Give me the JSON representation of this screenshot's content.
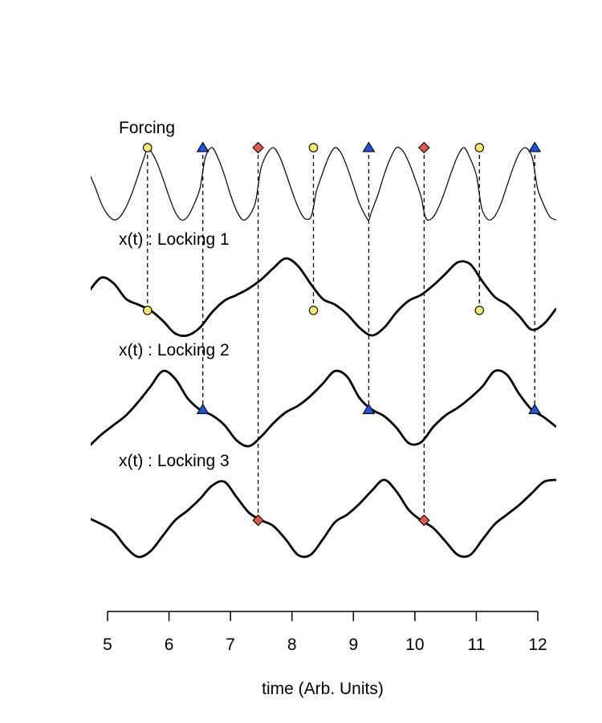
{
  "chart_data": {
    "type": "line",
    "title": "",
    "xlabel": "time (Arb. Units)",
    "ylabel": "",
    "xlim": [
      4.7,
      12.3
    ],
    "x_ticks": [
      5,
      6,
      7,
      8,
      9,
      10,
      11,
      12
    ],
    "grid": false,
    "panels": [
      {
        "label": "Forcing",
        "x": [
          4.7,
          4.8,
          4.9,
          5.0,
          5.1,
          5.2,
          5.3,
          5.4,
          5.5,
          5.6,
          5.65,
          5.7,
          5.8,
          5.9,
          6.0,
          6.1,
          6.2,
          6.3,
          6.4,
          6.5,
          6.55,
          6.6,
          6.7,
          6.8,
          6.9,
          7.0,
          7.1,
          7.2,
          7.3,
          7.4,
          7.45,
          7.5,
          7.6,
          7.7,
          7.8,
          7.9,
          8.0,
          8.1,
          8.2,
          8.3,
          8.35,
          8.4,
          8.5,
          8.6,
          8.7,
          8.8,
          8.9,
          9.0,
          9.1,
          9.2,
          9.25,
          9.3,
          9.4,
          9.5,
          9.6,
          9.7,
          9.8,
          9.9,
          10.0,
          10.1,
          10.15,
          10.2,
          10.3,
          10.4,
          10.5,
          10.6,
          10.7,
          10.8,
          10.9,
          11.0,
          11.05,
          11.1,
          11.2,
          11.3,
          11.4,
          11.5,
          11.6,
          11.7,
          11.8,
          11.9,
          11.95,
          12.0,
          12.1,
          12.2,
          12.3
        ],
        "y": [
          0.3,
          -0.1,
          -0.55,
          -0.85,
          -1.0,
          -0.92,
          -0.65,
          -0.25,
          0.25,
          0.75,
          1.0,
          0.92,
          0.6,
          0.15,
          -0.35,
          -0.78,
          -1.0,
          -0.92,
          -0.6,
          -0.15,
          0.35,
          0.78,
          1.0,
          0.7,
          0.25,
          -0.3,
          -0.75,
          -1.0,
          -0.9,
          -0.55,
          -0.05,
          0.45,
          0.85,
          1.0,
          0.75,
          0.3,
          -0.2,
          -0.65,
          -0.95,
          -0.95,
          -0.65,
          -0.2,
          0.3,
          0.75,
          1.0,
          0.85,
          0.45,
          -0.05,
          -0.55,
          -0.9,
          -1.0,
          -0.75,
          -0.3,
          0.25,
          0.7,
          1.0,
          0.92,
          0.6,
          0.15,
          -0.35,
          -0.78,
          -1.0,
          -0.92,
          -0.6,
          -0.15,
          0.35,
          0.78,
          1.0,
          0.7,
          0.25,
          -0.3,
          -0.75,
          -1.0,
          -0.9,
          -0.55,
          -0.05,
          0.45,
          0.85,
          1.0,
          0.78,
          0.35,
          -0.15,
          -0.6,
          -0.92,
          -1.0
        ],
        "markers": [
          {
            "x": 5.65,
            "y": 1.0,
            "shape": "circle"
          },
          {
            "x": 6.55,
            "y": 1.0,
            "shape": "triangle"
          },
          {
            "x": 7.45,
            "y": 1.0,
            "shape": "diamond"
          },
          {
            "x": 8.35,
            "y": 1.0,
            "shape": "circle"
          },
          {
            "x": 9.25,
            "y": 1.0,
            "shape": "triangle"
          },
          {
            "x": 10.15,
            "y": 1.0,
            "shape": "diamond"
          },
          {
            "x": 11.05,
            "y": 1.0,
            "shape": "circle"
          },
          {
            "x": 11.95,
            "y": 1.0,
            "shape": "triangle"
          }
        ]
      },
      {
        "label": "x(t) : Locking 1",
        "x": [
          4.7,
          4.9,
          5.1,
          5.3,
          5.5,
          5.7,
          5.9,
          6.1,
          6.3,
          6.5,
          6.7,
          6.9,
          7.1,
          7.3,
          7.5,
          7.7,
          7.9,
          8.1,
          8.3,
          8.5,
          8.7,
          8.9,
          9.1,
          9.3,
          9.5,
          9.7,
          9.9,
          10.1,
          10.3,
          10.5,
          10.7,
          10.9,
          11.1,
          11.3,
          11.5,
          11.7,
          11.9,
          12.1,
          12.3
        ],
        "y": [
          0.15,
          0.5,
          0.35,
          -0.05,
          -0.2,
          -0.35,
          -0.62,
          -0.95,
          -1.0,
          -0.8,
          -0.4,
          -0.1,
          0.05,
          0.22,
          0.45,
          0.75,
          1.0,
          0.8,
          0.35,
          -0.05,
          -0.2,
          -0.45,
          -0.8,
          -1.0,
          -0.8,
          -0.4,
          -0.1,
          0.05,
          0.3,
          0.6,
          0.9,
          0.85,
          0.4,
          0.0,
          -0.2,
          -0.5,
          -0.85,
          -0.7,
          -0.3
        ],
        "markers": [
          {
            "x": 5.65,
            "y": -0.35,
            "shape": "circle"
          },
          {
            "x": 8.35,
            "y": -0.35,
            "shape": "circle"
          },
          {
            "x": 11.05,
            "y": -0.35,
            "shape": "circle"
          }
        ]
      },
      {
        "label": "x(t) : Locking 2",
        "x": [
          4.7,
          4.9,
          5.1,
          5.3,
          5.5,
          5.7,
          5.9,
          6.1,
          6.3,
          6.5,
          6.7,
          6.9,
          7.1,
          7.3,
          7.5,
          7.7,
          7.9,
          8.1,
          8.3,
          8.5,
          8.7,
          8.9,
          9.1,
          9.3,
          9.5,
          9.7,
          9.9,
          10.1,
          10.3,
          10.5,
          10.7,
          10.9,
          11.1,
          11.3,
          11.5,
          11.7,
          11.9,
          12.1,
          12.3
        ],
        "y": [
          -1.0,
          -0.7,
          -0.45,
          -0.2,
          0.15,
          0.55,
          0.95,
          0.75,
          0.25,
          -0.05,
          -0.2,
          -0.45,
          -0.85,
          -1.0,
          -0.75,
          -0.4,
          -0.12,
          0.05,
          0.3,
          0.62,
          0.95,
          0.8,
          0.25,
          -0.05,
          -0.22,
          -0.52,
          -0.92,
          -0.9,
          -0.5,
          -0.2,
          0.0,
          0.25,
          0.55,
          0.95,
          0.85,
          0.35,
          -0.05,
          -0.25,
          -0.5
        ],
        "markers": [
          {
            "x": 6.55,
            "y": -0.05,
            "shape": "triangle"
          },
          {
            "x": 9.25,
            "y": -0.05,
            "shape": "triangle"
          },
          {
            "x": 11.95,
            "y": -0.05,
            "shape": "triangle"
          }
        ]
      },
      {
        "label": "x(t) : Locking 3",
        "x": [
          4.7,
          4.9,
          5.1,
          5.3,
          5.5,
          5.7,
          5.9,
          6.1,
          6.3,
          6.5,
          6.7,
          6.9,
          7.1,
          7.3,
          7.5,
          7.7,
          7.9,
          8.1,
          8.3,
          8.5,
          8.7,
          8.9,
          9.1,
          9.3,
          9.5,
          9.7,
          9.9,
          10.1,
          10.3,
          10.5,
          10.7,
          10.9,
          11.1,
          11.3,
          11.5,
          11.7,
          11.9,
          12.1,
          12.3
        ],
        "y": [
          0.0,
          -0.15,
          -0.35,
          -0.75,
          -1.0,
          -0.85,
          -0.45,
          -0.05,
          0.2,
          0.5,
          0.85,
          0.95,
          0.55,
          0.15,
          -0.05,
          -0.2,
          -0.55,
          -0.95,
          -0.95,
          -0.55,
          -0.1,
          0.1,
          0.38,
          0.72,
          1.0,
          0.7,
          0.22,
          -0.05,
          -0.25,
          -0.6,
          -0.95,
          -0.95,
          -0.55,
          -0.15,
          0.1,
          0.35,
          0.65,
          0.95,
          1.0
        ],
        "markers": [
          {
            "x": 7.45,
            "y": -0.05,
            "shape": "diamond"
          },
          {
            "x": 10.15,
            "y": -0.05,
            "shape": "diamond"
          }
        ]
      }
    ],
    "marker_colors": {
      "circle": "#f6ec6a",
      "triangle": "#1a55e3",
      "diamond": "#de5a4a"
    }
  }
}
